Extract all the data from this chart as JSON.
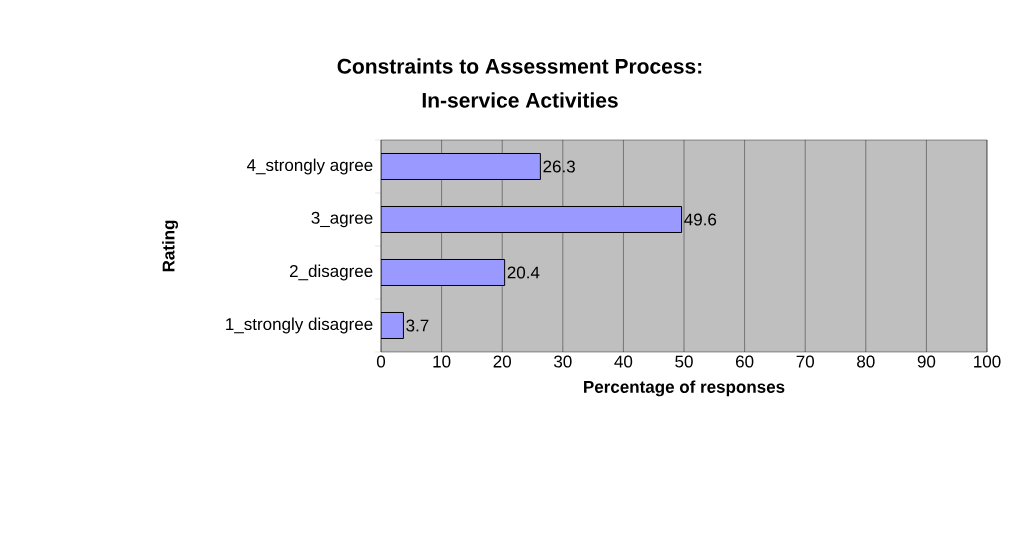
{
  "chart_data": {
    "type": "bar",
    "orientation": "horizontal",
    "title": "Constraints to Assessment Process:\nIn-service Activities",
    "xlabel": "Percentage of responses",
    "ylabel": "Rating",
    "categories": [
      "4_strongly agree",
      "3_agree",
      "2_disagree",
      "1_strongly disagree"
    ],
    "values": [
      26.3,
      49.6,
      20.4,
      3.7
    ],
    "color": "#9999ff",
    "xlim": [
      0,
      100
    ],
    "xticks": [
      0,
      10,
      20,
      30,
      40,
      50,
      60,
      70,
      80,
      90,
      100
    ],
    "grid": "x",
    "data_labels": true
  }
}
